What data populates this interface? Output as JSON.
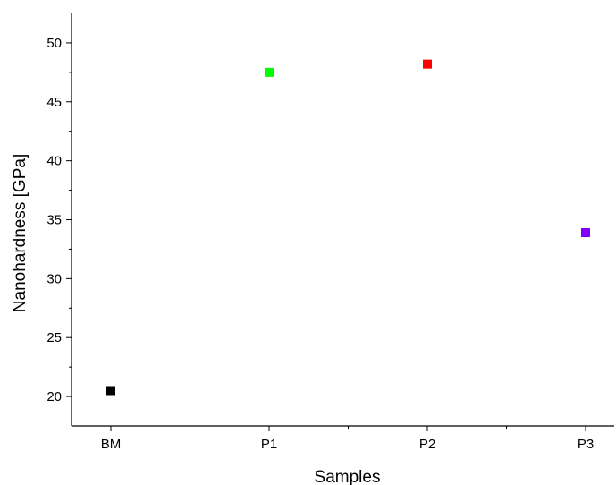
{
  "chart_data": {
    "type": "scatter",
    "categories": [
      "BM",
      "P1",
      "P2",
      "P3"
    ],
    "values": [
      20.5,
      47.5,
      48.2,
      33.9
    ],
    "point_colors": [
      "#000000",
      "#00ff00",
      "#ff0000",
      "#8000ff"
    ],
    "marker": "square",
    "xlabel": "Samples",
    "ylabel": "Nanohardness [GPa]",
    "ylim": [
      17.5,
      52.5
    ],
    "y_ticks": [
      20,
      25,
      30,
      35,
      40,
      45,
      50
    ],
    "y_tick_labels": [
      "20",
      "25",
      "30",
      "35",
      "40",
      "45",
      "50"
    ],
    "grid": false,
    "legend": "none"
  }
}
